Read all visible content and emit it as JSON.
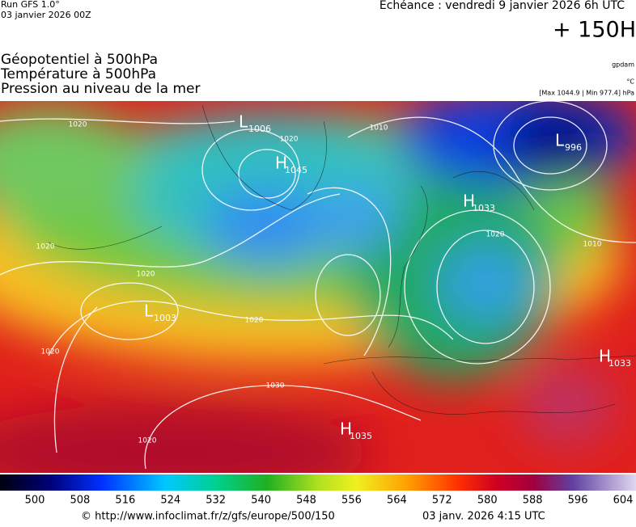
{
  "header": {
    "run": "Run GFS 1.0°",
    "run_date": "03 janvier 2026 00Z",
    "valid": "Echéance : vendredi 9 janvier 2026 6h UTC",
    "lead": "+ 150H"
  },
  "legend": {
    "lines": [
      "Géopotentiel à 500hPa",
      "Température à 500hPa",
      "Pression au niveau de la mer"
    ],
    "notes": [
      "gpdam",
      "°C",
      "[Max 1044.9 | Min 977.4] hPa"
    ]
  },
  "map": {
    "centers": [
      {
        "kind": "L",
        "value": "1006"
      },
      {
        "kind": "H",
        "value": "1045"
      },
      {
        "kind": "H",
        "value": "1033"
      },
      {
        "kind": "L",
        "value": "996"
      },
      {
        "kind": "L",
        "value": "1003"
      },
      {
        "kind": "H",
        "value": "1035"
      },
      {
        "kind": "H",
        "value": "1033"
      }
    ],
    "isobar_labels": [
      "1020",
      "1020",
      "1020",
      "1010",
      "1010",
      "1020",
      "1020",
      "1020",
      "1030",
      "1020",
      "1020"
    ]
  },
  "colorbar": {
    "ticks": [
      "500",
      "508",
      "516",
      "524",
      "532",
      "540",
      "548",
      "556",
      "564",
      "572",
      "580",
      "588",
      "596",
      "604"
    ]
  },
  "footer": {
    "url": "© http://www.infoclimat.fr/z/gfs/europe/500/150",
    "date": "03 janv. 2026  4:15 UTC"
  }
}
